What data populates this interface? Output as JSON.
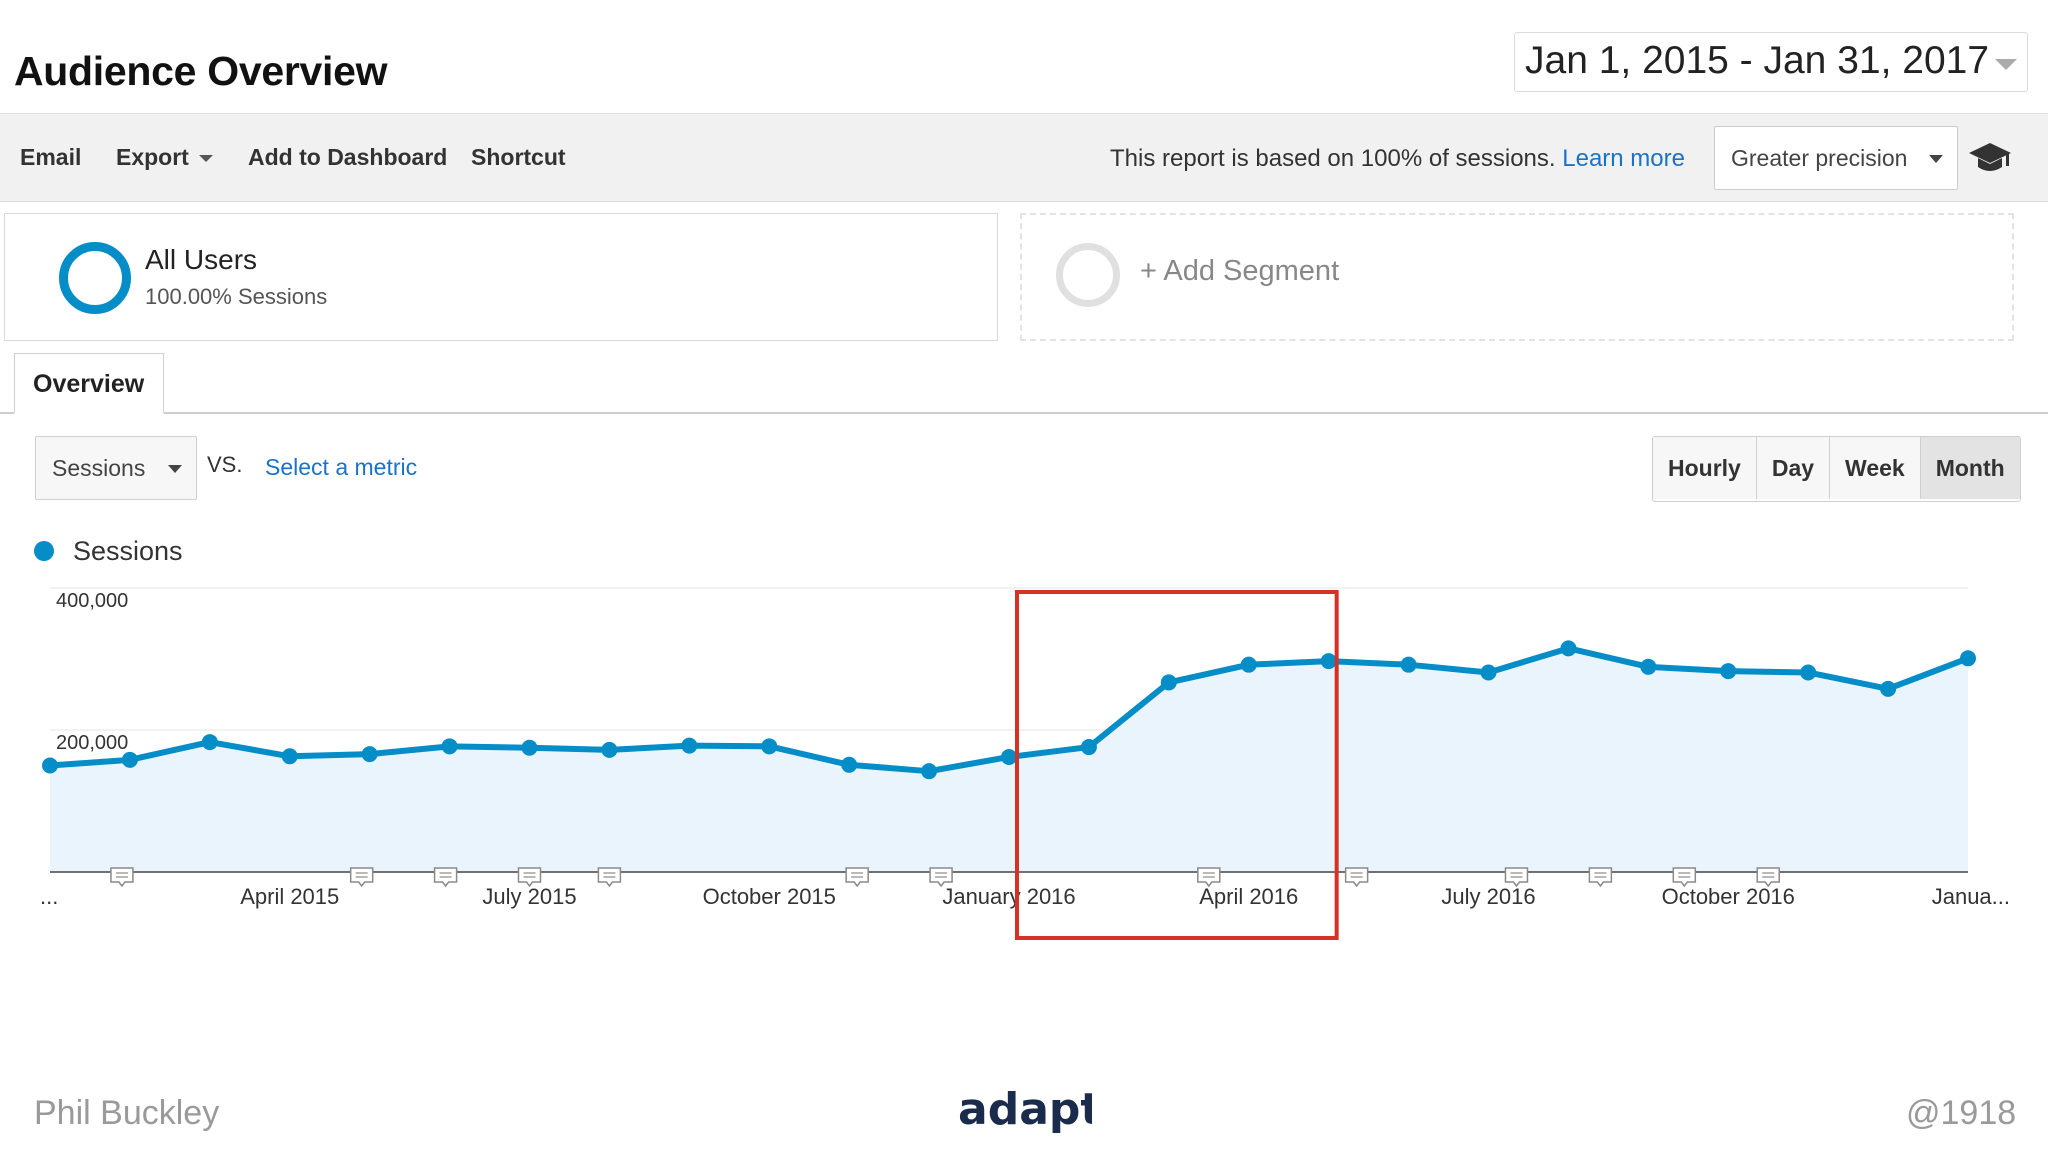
{
  "header": {
    "title": "Audience Overview",
    "date_range": "Jan 1, 2015 - Jan 31, 2017"
  },
  "toolbar": {
    "email": "Email",
    "export": "Export",
    "add_to_dashboard": "Add to Dashboard",
    "shortcut": "Shortcut",
    "sampling_text": "This report is based on 100% of sessions.",
    "learn_more": "Learn more",
    "precision": "Greater precision",
    "icon": "graduation-cap-icon"
  },
  "segments": {
    "all_users": {
      "name": "All Users",
      "sub": "100.00% Sessions"
    },
    "add_segment": "+ Add Segment"
  },
  "tabs": [
    {
      "label": "Overview",
      "active": true
    }
  ],
  "metrics": {
    "primary": "Sessions",
    "vs": "VS.",
    "select_metric": "Select a metric"
  },
  "granularity": [
    {
      "label": "Hourly",
      "active": false
    },
    {
      "label": "Day",
      "active": false
    },
    {
      "label": "Week",
      "active": false
    },
    {
      "label": "Month",
      "active": true
    }
  ],
  "colors": {
    "series": "#058dc7",
    "area": "#e9f4fc",
    "highlight": "#d93025"
  },
  "chart_data": {
    "type": "area",
    "legend": "top-left",
    "series": [
      {
        "name": "Sessions",
        "color": "#058dc7"
      }
    ],
    "x": [
      "2015-01",
      "2015-02",
      "2015-03",
      "2015-04",
      "2015-05",
      "2015-06",
      "2015-07",
      "2015-08",
      "2015-09",
      "2015-10",
      "2015-11",
      "2015-12",
      "2016-01",
      "2016-02",
      "2016-03",
      "2016-04",
      "2016-05",
      "2016-06",
      "2016-07",
      "2016-08",
      "2016-09",
      "2016-10",
      "2016-11",
      "2016-12",
      "2017-01"
    ],
    "values": [
      150000,
      158000,
      183000,
      163000,
      166000,
      177000,
      175000,
      172000,
      178000,
      177000,
      151000,
      142000,
      162000,
      176000,
      267000,
      292000,
      297000,
      292000,
      281000,
      315000,
      289000,
      283000,
      281000,
      258000,
      301000
    ],
    "ylim": [
      0,
      400000
    ],
    "yticks": [
      {
        "value": 200000,
        "label": "200,000"
      },
      {
        "value": 400000,
        "label": "400,000"
      }
    ],
    "xtick_labels": [
      {
        "index": 0,
        "label": "..."
      },
      {
        "index": 3,
        "label": "April 2015"
      },
      {
        "index": 6,
        "label": "July 2015"
      },
      {
        "index": 9,
        "label": "October 2015"
      },
      {
        "index": 12,
        "label": "January 2016"
      },
      {
        "index": 15,
        "label": "April 2016"
      },
      {
        "index": 18,
        "label": "July 2016"
      },
      {
        "index": 21,
        "label": "October 2016"
      },
      {
        "index": 24,
        "label": "Janua..."
      }
    ],
    "annotations": [
      0.9,
      3.9,
      4.95,
      6.0,
      7.0,
      10.1,
      11.15,
      14.5,
      16.35,
      18.35,
      19.4,
      20.45,
      21.5
    ],
    "highlight": {
      "x_range": [
        12.1,
        16.1
      ],
      "label": ""
    },
    "grid": true
  },
  "footer": {
    "left": "Phil Buckley",
    "logo": "adapt",
    "right": "@1918"
  }
}
